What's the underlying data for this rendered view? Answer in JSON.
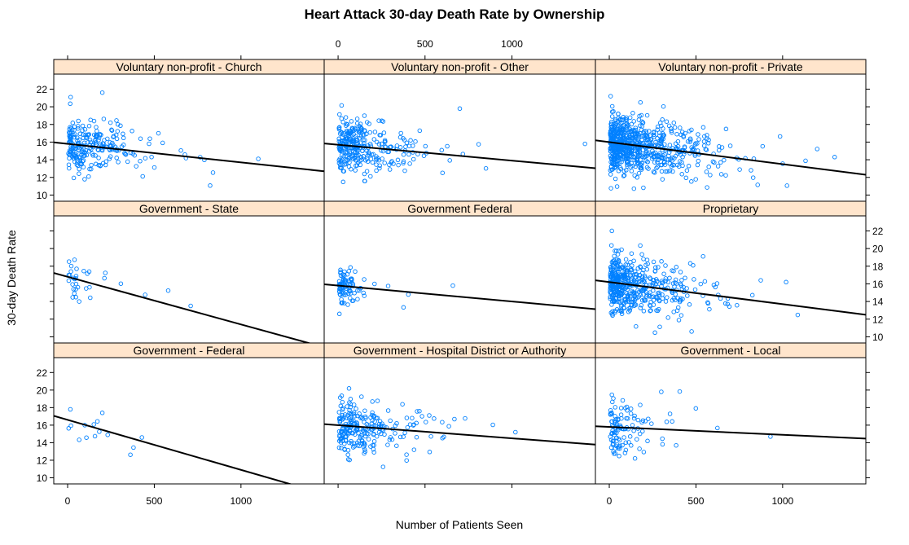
{
  "chart_data": {
    "type": "scatter",
    "title": "Heart Attack 30-day Death Rate by Ownership",
    "xlabel": "Number of Patients Seen",
    "ylabel": "30-day Death Rate",
    "xlim": [
      -80,
      1480
    ],
    "ylim": [
      9.3,
      23.7
    ],
    "x_ticks": [
      "0",
      "500",
      "1000"
    ],
    "x_tick_values": [
      0,
      500,
      1000
    ],
    "y_ticks": [
      "10",
      "12",
      "14",
      "16",
      "18",
      "20",
      "22"
    ],
    "y_tick_values": [
      10,
      12,
      14,
      16,
      18,
      20,
      22
    ],
    "grid": false,
    "point_color": "#0080ff",
    "line_color": "#000000",
    "strip_color": "#ffe5cc",
    "panels": [
      {
        "name": "Voluntary non-profit - Church",
        "fit": {
          "intercept": 15.8,
          "slope": -0.0021
        },
        "seed": 11,
        "n": 240,
        "x_scale": 170,
        "x_max": 1100,
        "sd": 1.5,
        "outliers": [
          [
            200,
            21.6
          ],
          [
            1100,
            14.1
          ]
        ]
      },
      {
        "name": "Voluntary non-profit - Other",
        "fit": {
          "intercept": 15.7,
          "slope": -0.0018
        },
        "seed": 22,
        "n": 300,
        "x_scale": 160,
        "x_max": 1420,
        "sd": 1.4,
        "outliers": [
          [
            700,
            19.8
          ],
          [
            1420,
            15.8
          ]
        ]
      },
      {
        "name": "Voluntary non-profit - Private",
        "fit": {
          "intercept": 16.0,
          "slope": -0.0025
        },
        "seed": 33,
        "n": 700,
        "x_scale": 190,
        "x_max": 1350,
        "sd": 1.6,
        "outliers": [
          [
            180,
            20.5
          ],
          [
            1300,
            14.3
          ]
        ]
      },
      {
        "name": "Government - State",
        "fit": {
          "intercept": 16.8,
          "slope": -0.0054
        },
        "seed": 44,
        "n": 32,
        "x_scale": 120,
        "x_max": 750,
        "sd": 1.4,
        "outliers": [
          [
            710,
            13.5
          ]
        ]
      },
      {
        "name": "Government Federal",
        "fit": {
          "intercept": 15.8,
          "slope": -0.0018
        },
        "seed": 55,
        "n": 90,
        "x_scale": 50,
        "x_max": 700,
        "sd": 1.2,
        "outliers": [
          [
            660,
            15.8
          ]
        ]
      },
      {
        "name": "Proprietary",
        "fit": {
          "intercept": 16.2,
          "slope": -0.0025
        },
        "seed": 66,
        "n": 500,
        "x_scale": 160,
        "x_max": 1100,
        "sd": 1.6,
        "outliers": [
          [
            15,
            22.0
          ],
          [
            475,
            10.6
          ],
          [
            1020,
            16.2
          ]
        ]
      },
      {
        "name": "Government - Federal",
        "fit": {
          "intercept": 16.6,
          "slope": -0.0057
        },
        "seed": 77,
        "n": 14,
        "x_scale": 200,
        "x_max": 520,
        "sd": 1.2,
        "outliers": [
          [
            200,
            17.4
          ]
        ]
      },
      {
        "name": "Government - Hospital District or Authority",
        "fit": {
          "intercept": 16.0,
          "slope": -0.0015
        },
        "seed": 88,
        "n": 240,
        "x_scale": 150,
        "x_max": 1100,
        "sd": 1.5,
        "outliers": [
          [
            1020,
            15.2
          ]
        ]
      },
      {
        "name": "Government - Local",
        "fit": {
          "intercept": 15.8,
          "slope": -0.0009
        },
        "seed": 99,
        "n": 110,
        "x_scale": 120,
        "x_max": 950,
        "sd": 1.5,
        "outliers": [
          [
            300,
            19.8
          ],
          [
            930,
            14.7
          ]
        ]
      }
    ]
  }
}
